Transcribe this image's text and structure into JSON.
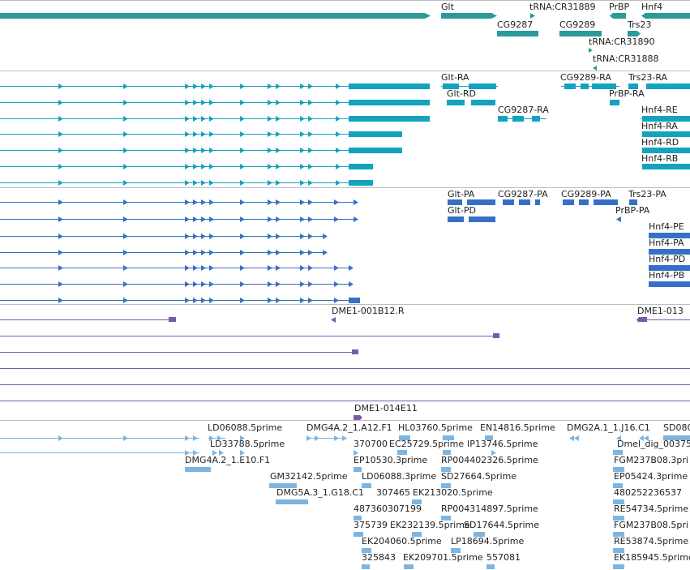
{
  "colors": {
    "genes": "#2b9a9a",
    "transcripts": "#14a3bf",
    "proteins": "#3670c6",
    "clones": "#7a5aae",
    "ests": "#7db5e0",
    "divider": "#bdbdbd"
  },
  "tracks": {
    "genes": {
      "labels": [
        "Glt",
        "tRNA:CR31889",
        "PrBP",
        "Hnf4",
        "CG9287",
        "CG9289",
        "Trs23",
        "tRNA:CR31890",
        "tRNA:CR31888"
      ]
    },
    "transcripts": {
      "labels": [
        "Glt-RA",
        "CG9289-RA",
        "Trs23-RA",
        "Glt-RD",
        "PrBP-RA",
        "CG9287-RA",
        "Hnf4-RE",
        "Hnf4-RA",
        "Hnf4-RD",
        "Hnf4-RB"
      ]
    },
    "proteins": {
      "labels": [
        "Glt-PA",
        "CG9287-PA",
        "CG9289-PA",
        "Trs23-PA",
        "Glt-PD",
        "PrBP-PA",
        "Hnf4-PE",
        "Hnf4-PA",
        "Hnf4-PD",
        "Hnf4-PB"
      ]
    },
    "clones": {
      "labels": [
        "DME1-001B12.R",
        "DME1-013",
        "DME1-014E11"
      ]
    },
    "ests": {
      "labels": [
        "LD06088.5prime",
        "DMG4A.2_1.A12.F1",
        "HL03760.5prime",
        "EN14816.5prime",
        "DMG2A.1_1.J16.C1",
        "SD080",
        "LD33788.5prime",
        "370700",
        "EC25729.5prime",
        "IP13746.5prime",
        "Dmel_dig_00375",
        "DMG4A.2_1.E10.F1",
        "EP10530.3prime",
        "RP004402326.5prime",
        "FGM237B08.3pri",
        "GM32142.5prime",
        "LD06088.3prime",
        "SD27664.5prime",
        "EP05424.3prime",
        "DMG5A.3_1.G18.C1",
        "307465",
        "EK213020.5prime",
        "480252236537",
        "487360307199",
        "RP004314897.5prime",
        "RE54734.5prime",
        "375739",
        "EK232139.5prime",
        "SD17644.5prime",
        "FGM237B08.5pri",
        "EK204060.5prime",
        "LP18694.5prime",
        "RE53874.5prime",
        "325843",
        "EK209701.5prime",
        "557081",
        "EK185945.5prime"
      ]
    }
  }
}
